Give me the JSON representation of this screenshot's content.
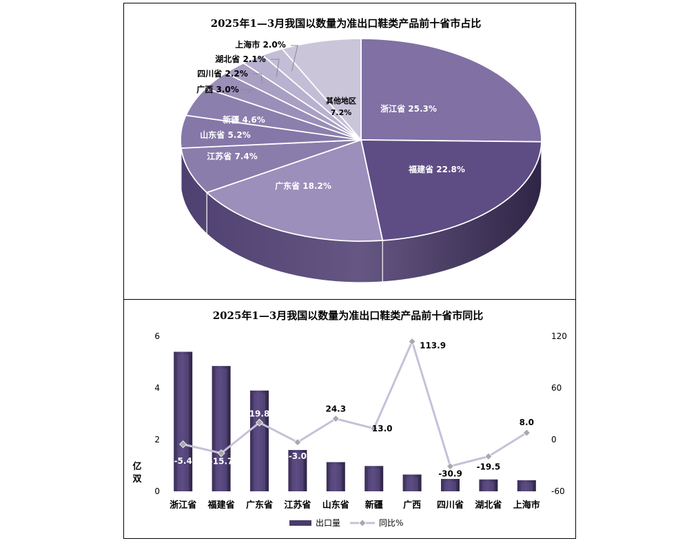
{
  "chart_data": [
    {
      "type": "pie",
      "title": "2025年1—3月我国以数量为准出口鞋类产品前十省市占比",
      "slices": [
        {
          "label": "浙江省",
          "value": 25.3,
          "display": "25.3%"
        },
        {
          "label": "福建省",
          "value": 22.8,
          "display": "22.8%"
        },
        {
          "label": "广东省",
          "value": 18.2,
          "display": "18.2%"
        },
        {
          "label": "江苏省",
          "value": 7.4,
          "display": "7.4%"
        },
        {
          "label": "山东省",
          "value": 5.2,
          "display": "5.2%"
        },
        {
          "label": "新疆",
          "value": 4.6,
          "display": "4.6%"
        },
        {
          "label": "广西",
          "value": 3.0,
          "display": "3.0%"
        },
        {
          "label": "四川省",
          "value": 2.2,
          "display": "2.2%"
        },
        {
          "label": "湖北省",
          "value": 2.1,
          "display": "2.1%"
        },
        {
          "label": "上海市",
          "value": 2.0,
          "display": "2.0%"
        },
        {
          "label": "其他地区",
          "value": 7.2,
          "display": "7.2%"
        }
      ],
      "colors": {
        "main": "#5a4a80",
        "light": "#c9c2d6",
        "dark": "#463a66"
      }
    },
    {
      "type": "bar",
      "title": "2025年1—3月我国以数量为准出口鞋类产品前十省市同比",
      "categories": [
        "浙江省",
        "福建省",
        "广东省",
        "江苏省",
        "山东省",
        "新疆",
        "广西",
        "四川省",
        "湖北省",
        "上海市"
      ],
      "series": [
        {
          "name": "出口量",
          "kind": "bar",
          "axis": "left",
          "values": [
            5.4,
            4.85,
            3.9,
            1.6,
            1.13,
            0.98,
            0.65,
            0.48,
            0.46,
            0.43
          ]
        },
        {
          "name": "同比%",
          "kind": "line",
          "axis": "right",
          "values": [
            -5.4,
            -15.7,
            19.8,
            -3.0,
            24.3,
            13.0,
            113.9,
            -30.9,
            -19.5,
            8.0
          ],
          "labels": [
            "-5.4",
            "-15.7",
            "19.8",
            "-3.0",
            "24.3",
            "13.0",
            "113.9",
            "-30.9",
            "-19.5",
            "8.0"
          ]
        }
      ],
      "ylabel": "亿双",
      "ylim": [
        0,
        6
      ],
      "yticks": [
        "0",
        "2",
        "4",
        "6"
      ],
      "y2lim": [
        -60,
        120
      ],
      "y2ticks": [
        "-60",
        "0",
        "60",
        "120"
      ],
      "colors": {
        "bar": "#4a3b6b",
        "line": "#c7c0d8",
        "marker": "#a9a9a9"
      }
    }
  ]
}
